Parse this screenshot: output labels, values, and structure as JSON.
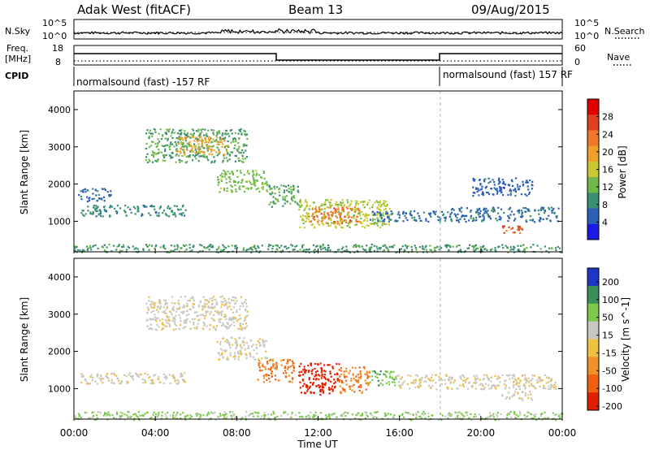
{
  "header": {
    "station": "Adak West (fitACF)",
    "beam": "Beam 13",
    "date": "09/Aug/2015"
  },
  "sky_panel": {
    "left_label": "N.Sky",
    "right_label": "N.Search",
    "left_ticks": [
      "10^5",
      "10^0"
    ],
    "right_ticks": [
      "10^5",
      "10^0"
    ]
  },
  "freq_panel": {
    "left_label_line1": "Freq.",
    "left_label_line2": "[MHz]",
    "right_label": "Nave",
    "left_ticks": [
      "18",
      "8"
    ],
    "right_ticks": [
      "60",
      "0"
    ]
  },
  "cpid_panel": {
    "label": "CPID",
    "mode_left": "normalsound (fast) -157 RF",
    "mode_right": "normalsound (fast) 157 RF"
  },
  "x_axis": {
    "label": "Time UT",
    "ticks": [
      "00:00",
      "04:00",
      "08:00",
      "12:00",
      "16:00",
      "20:00",
      "00:00"
    ]
  },
  "colors": {
    "power_scale": [
      "#1a1ae6",
      "#2b5fb8",
      "#3a8f70",
      "#6fb84a",
      "#c8c832",
      "#f0a028",
      "#f07828",
      "#e04020",
      "#e00000"
    ],
    "velocity_scale": [
      "#2035c8",
      "#3a8f5a",
      "#7cc84a",
      "#c8c8c0",
      "#f0c040",
      "#f09028",
      "#f06010",
      "#e02000"
    ],
    "gray": "#c8c8c0"
  },
  "chart_data": [
    {
      "type": "heatmap",
      "title": "Power",
      "ylabel": "Slant Range [km]",
      "xlabel": "",
      "x_range": [
        0,
        24
      ],
      "ylim": [
        180,
        4500
      ],
      "yticks": [
        1000,
        2000,
        3000,
        4000
      ],
      "colorbar_label": "Power [dB]",
      "colorbar_ticks": [
        "4",
        "8",
        "12",
        "16",
        "20",
        "24",
        "28"
      ],
      "clim": [
        0,
        30
      ],
      "regions": [
        {
          "t_start": 0.3,
          "t_end": 5.5,
          "r_start": 1150,
          "r_end": 1450,
          "value": 8
        },
        {
          "t_start": 0.2,
          "t_end": 1.8,
          "r_start": 1550,
          "r_end": 1900,
          "value": 6
        },
        {
          "t_start": 3.5,
          "t_end": 8.5,
          "r_start": 2600,
          "r_end": 3500,
          "value": 10
        },
        {
          "t_start": 5.0,
          "t_end": 7.5,
          "r_start": 2800,
          "r_end": 3300,
          "value": 18
        },
        {
          "t_start": 7.0,
          "t_end": 9.5,
          "r_start": 1800,
          "r_end": 2400,
          "value": 12
        },
        {
          "t_start": 9.5,
          "t_end": 11.0,
          "r_start": 1400,
          "r_end": 2000,
          "value": 10
        },
        {
          "t_start": 11.0,
          "t_end": 15.5,
          "r_start": 850,
          "r_end": 1600,
          "value": 14
        },
        {
          "t_start": 11.5,
          "t_end": 14.0,
          "r_start": 950,
          "r_end": 1400,
          "value": 22
        },
        {
          "t_start": 14.5,
          "t_end": 18.5,
          "r_start": 1000,
          "r_end": 1300,
          "value": 6
        },
        {
          "t_start": 18.5,
          "t_end": 23.8,
          "r_start": 1000,
          "r_end": 1400,
          "value": 6
        },
        {
          "t_start": 19.5,
          "t_end": 22.5,
          "r_start": 1700,
          "r_end": 2200,
          "value": 5
        },
        {
          "t_start": 21.0,
          "t_end": 22.0,
          "r_start": 700,
          "r_end": 900,
          "value": 24
        },
        {
          "t_start": 0.0,
          "t_end": 24.0,
          "r_start": 180,
          "r_end": 400,
          "value": 9
        }
      ]
    },
    {
      "type": "heatmap",
      "title": "Velocity",
      "ylabel": "Slant Range [km]",
      "xlabel": "Time UT",
      "x_range": [
        0,
        24
      ],
      "ylim": [
        180,
        4500
      ],
      "yticks": [
        1000,
        2000,
        3000,
        4000
      ],
      "colorbar_label": "Velocity [m s^-1]",
      "colorbar_ticks": [
        "200",
        "100",
        "50",
        "15",
        "-15",
        "-50",
        "-100",
        "-200"
      ],
      "clim": [
        -250,
        250
      ],
      "regions": [
        {
          "t_start": 0.3,
          "t_end": 5.5,
          "r_start": 1150,
          "r_end": 1450,
          "value": 0
        },
        {
          "t_start": 3.5,
          "t_end": 8.5,
          "r_start": 2600,
          "r_end": 3500,
          "value": 0
        },
        {
          "t_start": 7.0,
          "t_end": 9.5,
          "r_start": 1800,
          "r_end": 2400,
          "value": 0
        },
        {
          "t_start": 9.0,
          "t_end": 10.8,
          "r_start": 1200,
          "r_end": 1800,
          "value": -80
        },
        {
          "t_start": 11.0,
          "t_end": 13.0,
          "r_start": 850,
          "r_end": 1700,
          "value": -180
        },
        {
          "t_start": 13.0,
          "t_end": 14.5,
          "r_start": 900,
          "r_end": 1600,
          "value": -70
        },
        {
          "t_start": 14.5,
          "t_end": 15.8,
          "r_start": 1100,
          "r_end": 1500,
          "value": 60
        },
        {
          "t_start": 15.8,
          "t_end": 23.8,
          "r_start": 1000,
          "r_end": 1400,
          "value": 0
        },
        {
          "t_start": 21.0,
          "t_end": 22.5,
          "r_start": 700,
          "r_end": 950,
          "value": 0
        },
        {
          "t_start": 0.0,
          "t_end": 24.0,
          "r_start": 180,
          "r_end": 400,
          "value": 40
        }
      ]
    }
  ]
}
